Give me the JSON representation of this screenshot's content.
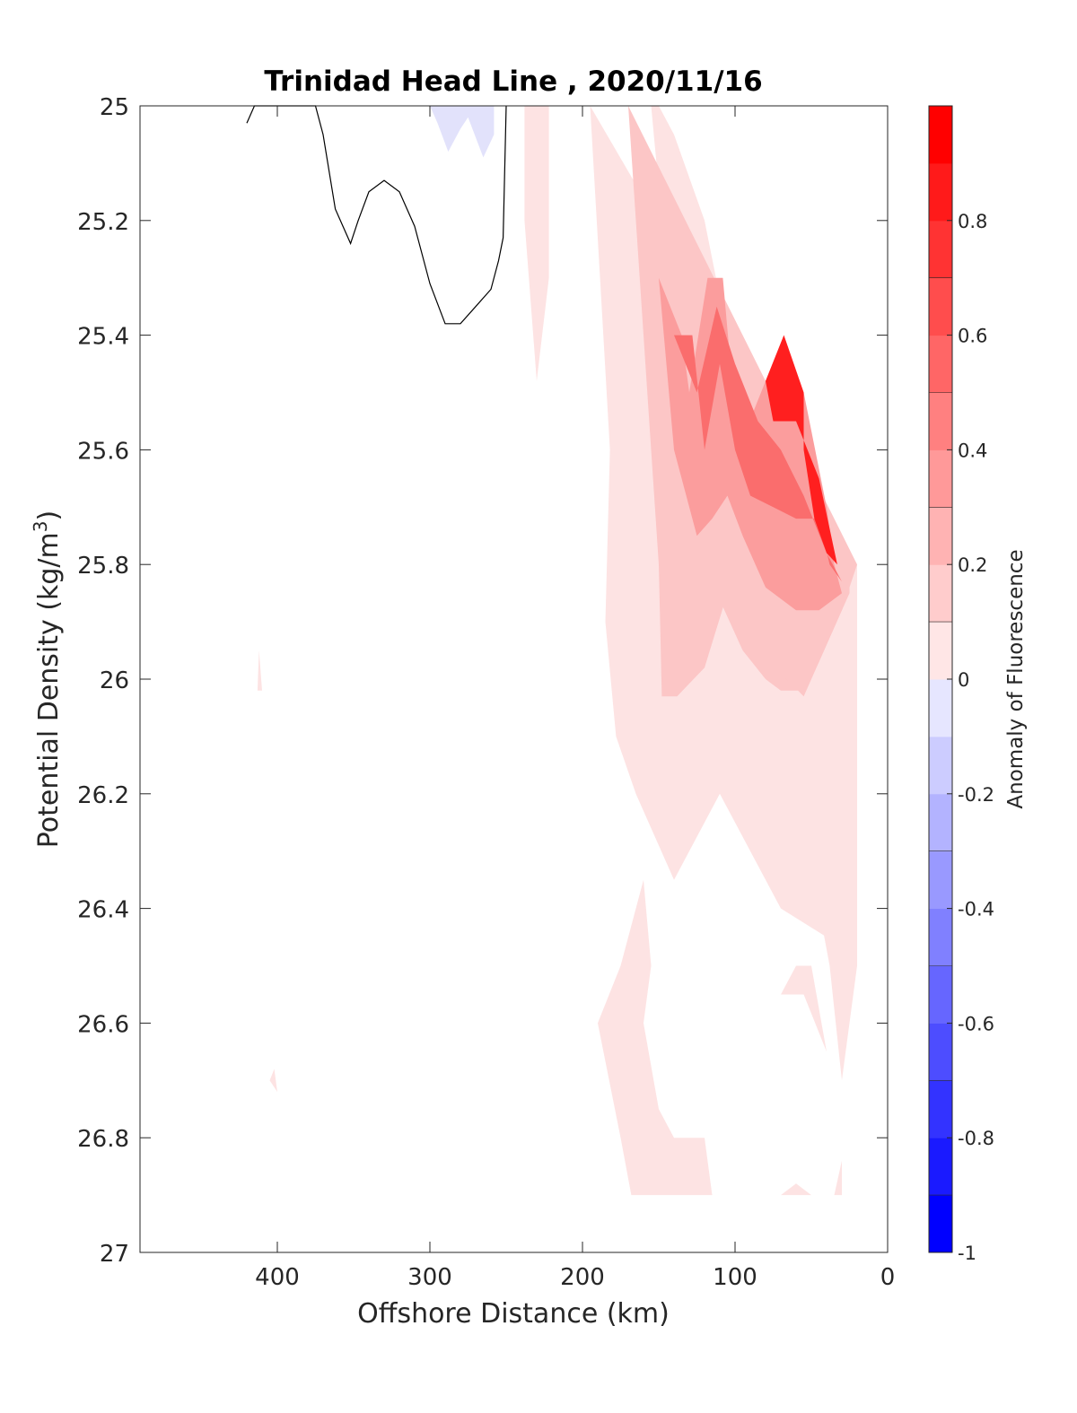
{
  "chart_data": {
    "type": "contour",
    "title": "Trinidad Head Line , 2020/11/16",
    "xlabel": "Offshore Distance (km)",
    "ylabel": "Potential Density (kg/m",
    "ylabel_sup": "3",
    "ylabel_close": ")",
    "xlim": [
      490,
      0
    ],
    "ylim": [
      25,
      27
    ],
    "x_reversed": true,
    "y_reversed": true,
    "xticks": [
      400,
      300,
      200,
      100,
      0
    ],
    "xtick_labels": [
      "400",
      "300",
      "200",
      "100",
      "0"
    ],
    "yticks": [
      25,
      25.2,
      25.4,
      25.6,
      25.8,
      26,
      26.2,
      26.4,
      26.6,
      26.8,
      27
    ],
    "ytick_labels": [
      "25",
      "25.2",
      "25.4",
      "25.6",
      "25.8",
      "26",
      "26.2",
      "26.4",
      "26.6",
      "26.8",
      "27"
    ],
    "colorbar": {
      "label": "Anomaly of Fluorescence",
      "clim": [
        -1,
        1
      ],
      "level_step": 0.2,
      "ticks": [
        0.8,
        0.6,
        0.4,
        0.2,
        0,
        -0.2,
        -0.4,
        -0.6,
        -0.8,
        -1
      ],
      "tick_labels": [
        "0.8",
        "0.6",
        "0.4",
        "0.2",
        "0",
        "-0.2",
        "-0.4",
        "-0.6",
        "-0.8",
        "-1"
      ],
      "colors": [
        "#0000ff",
        "#1a1aff",
        "#3333ff",
        "#4d4dff",
        "#6666ff",
        "#8080ff",
        "#9999ff",
        "#b3b3ff",
        "#ccccff",
        "#e6e6ff",
        "#ffffff",
        "#ffffff",
        "#ffe6e6",
        "#ffcccc",
        "#ffb3b3",
        "#ff9999",
        "#ff8080",
        "#ff6666",
        "#ff4d4d",
        "#ff3333",
        "#ff1a1a",
        "#ff0000"
      ]
    },
    "regions": [
      {
        "level": 0.1,
        "color": "#fde3e3",
        "points": [
          [
            195,
            25
          ],
          [
            155,
            25
          ],
          [
            148,
            25.2
          ],
          [
            135,
            25.4
          ],
          [
            118,
            25.6
          ],
          [
            102,
            25.8
          ],
          [
            88,
            26
          ],
          [
            72,
            26.2
          ],
          [
            52,
            26.3
          ],
          [
            38,
            26.5
          ],
          [
            30,
            26.7
          ],
          [
            20,
            26.5
          ],
          [
            20,
            25.8
          ],
          [
            80,
            25.6
          ],
          [
            105,
            25.4
          ],
          [
            120,
            25.2
          ],
          [
            140,
            25.05
          ],
          [
            150,
            25
          ],
          [
            195,
            25
          ]
        ]
      },
      {
        "level": 0.1,
        "color": "#fde3e3",
        "points": [
          [
            195,
            25
          ],
          [
            182,
            25.6
          ],
          [
            185,
            25.9
          ],
          [
            178,
            26.1
          ],
          [
            165,
            26.2
          ],
          [
            140,
            26.35
          ],
          [
            110,
            26.2
          ],
          [
            90,
            26.3
          ],
          [
            70,
            26.4
          ],
          [
            40,
            26.45
          ],
          [
            30,
            26.5
          ],
          [
            20,
            26.5
          ],
          [
            20,
            25.8
          ],
          [
            195,
            25
          ]
        ]
      },
      {
        "level": 0.1,
        "color": "#fde3e3",
        "points": [
          [
            238,
            25
          ],
          [
            222,
            25
          ],
          [
            222,
            25.3
          ],
          [
            230,
            25.48
          ],
          [
            238,
            25.2
          ],
          [
            238,
            25
          ]
        ]
      },
      {
        "level": 0.1,
        "color": "#fde3e3",
        "points": [
          [
            160,
            26.35
          ],
          [
            175,
            26.5
          ],
          [
            190,
            26.6
          ],
          [
            175,
            26.8
          ],
          [
            168,
            26.9
          ],
          [
            115,
            26.9
          ],
          [
            120,
            26.8
          ],
          [
            140,
            26.8
          ],
          [
            150,
            26.75
          ],
          [
            160,
            26.6
          ],
          [
            155,
            26.5
          ],
          [
            160,
            26.35
          ]
        ]
      },
      {
        "level": 0.1,
        "color": "#fde3e3",
        "points": [
          [
            70,
            26.55
          ],
          [
            60,
            26.5
          ],
          [
            50,
            26.5
          ],
          [
            40,
            26.65
          ],
          [
            55,
            26.55
          ],
          [
            70,
            26.55
          ]
        ]
      },
      {
        "level": 0.1,
        "color": "#fde3e3",
        "points": [
          [
            412,
            25.95
          ],
          [
            410,
            26.02
          ],
          [
            413,
            26.02
          ],
          [
            412,
            25.95
          ]
        ]
      },
      {
        "level": 0.1,
        "color": "#fde3e3",
        "points": [
          [
            405,
            26.7
          ],
          [
            400,
            26.72
          ],
          [
            402,
            26.68
          ],
          [
            405,
            26.7
          ]
        ]
      },
      {
        "level": 0.1,
        "color": "#fde3e3",
        "points": [
          [
            70,
            26.9
          ],
          [
            50,
            26.9
          ],
          [
            60,
            26.88
          ],
          [
            70,
            26.9
          ]
        ]
      },
      {
        "level": 0.1,
        "color": "#fde3e3",
        "points": [
          [
            30,
            26.9
          ],
          [
            35,
            26.9
          ],
          [
            30,
            26.84
          ],
          [
            30,
            26.9
          ]
        ]
      },
      {
        "level": 0.3,
        "color": "#fcc6c6",
        "points": [
          [
            170,
            25
          ],
          [
            160,
            25.1
          ],
          [
            150,
            25.2
          ],
          [
            145,
            25.35
          ],
          [
            140,
            25.5
          ],
          [
            130,
            25.65
          ],
          [
            120,
            25.75
          ],
          [
            112,
            25.85
          ],
          [
            95,
            25.95
          ],
          [
            80,
            26
          ],
          [
            70,
            26.02
          ],
          [
            55,
            26.02
          ],
          [
            45,
            25.97
          ],
          [
            30,
            25.88
          ],
          [
            25,
            25.85
          ],
          [
            25,
            25.8
          ],
          [
            60,
            25.7
          ],
          [
            85,
            25.6
          ],
          [
            105,
            25.5
          ],
          [
            125,
            25.4
          ],
          [
            140,
            25.35
          ],
          [
            150,
            25.3
          ],
          [
            160,
            25.2
          ],
          [
            165,
            25.1
          ],
          [
            170,
            25
          ]
        ]
      },
      {
        "level": 0.3,
        "color": "#fcc6c6",
        "points": [
          [
            170,
            25
          ],
          [
            150,
            25.8
          ],
          [
            148,
            26.03
          ],
          [
            138,
            26.03
          ],
          [
            120,
            25.98
          ],
          [
            105,
            25.85
          ],
          [
            85,
            25.95
          ],
          [
            55,
            26.03
          ],
          [
            30,
            25.88
          ],
          [
            20,
            25.8
          ],
          [
            20,
            25.8
          ],
          [
            170,
            25
          ]
        ]
      },
      {
        "level": 0.5,
        "color": "#fb9d9d",
        "points": [
          [
            150,
            25.3
          ],
          [
            135,
            25.4
          ],
          [
            130,
            25.5
          ],
          [
            118,
            25.3
          ],
          [
            108,
            25.3
          ],
          [
            98,
            25.6
          ],
          [
            80,
            25.48
          ],
          [
            68,
            25.4
          ],
          [
            55,
            25.5
          ],
          [
            40,
            25.7
          ],
          [
            35,
            25.8
          ],
          [
            30,
            25.85
          ],
          [
            45,
            25.88
          ],
          [
            60,
            25.88
          ],
          [
            80,
            25.84
          ],
          [
            95,
            25.75
          ],
          [
            105,
            25.68
          ],
          [
            115,
            25.72
          ],
          [
            125,
            25.75
          ],
          [
            140,
            25.6
          ],
          [
            150,
            25.3
          ]
        ]
      },
      {
        "level": 0.7,
        "color": "#fa6d6d",
        "points": [
          [
            140,
            25.4
          ],
          [
            128,
            25.4
          ],
          [
            120,
            25.6
          ],
          [
            110,
            25.45
          ],
          [
            100,
            25.6
          ],
          [
            90,
            25.68
          ],
          [
            75,
            25.7
          ],
          [
            60,
            25.72
          ],
          [
            45,
            25.72
          ],
          [
            38,
            25.8
          ],
          [
            30,
            25.83
          ],
          [
            40,
            25.78
          ],
          [
            55,
            25.68
          ],
          [
            70,
            25.6
          ],
          [
            85,
            25.55
          ],
          [
            100,
            25.45
          ],
          [
            112,
            25.35
          ],
          [
            125,
            25.5
          ],
          [
            140,
            25.4
          ]
        ]
      },
      {
        "level": 0.9,
        "color": "#ff1f1f",
        "points": [
          [
            68,
            25.4
          ],
          [
            55,
            25.5
          ],
          [
            55,
            25.6
          ],
          [
            48,
            25.72
          ],
          [
            40,
            25.78
          ],
          [
            33,
            25.8
          ],
          [
            45,
            25.65
          ],
          [
            60,
            25.55
          ],
          [
            75,
            25.55
          ],
          [
            80,
            25.48
          ],
          [
            68,
            25.4
          ]
        ]
      }
    ],
    "zero_contour": [
      [
        420,
        25.03
      ],
      [
        415,
        25
      ],
      [
        375,
        25
      ],
      [
        370,
        25.05
      ],
      [
        362,
        25.18
      ],
      [
        352,
        25.24
      ],
      [
        347,
        25.2
      ],
      [
        340,
        25.15
      ],
      [
        330,
        25.13
      ],
      [
        320,
        25.15
      ],
      [
        310,
        25.21
      ],
      [
        300,
        25.31
      ],
      [
        290,
        25.38
      ],
      [
        280,
        25.38
      ],
      [
        270,
        25.35
      ],
      [
        260,
        25.32
      ],
      [
        255,
        25.27
      ],
      [
        252,
        25.23
      ],
      [
        250,
        25.0
      ]
    ],
    "negative_patch": [
      [
        300,
        25
      ],
      [
        295,
        25.03
      ],
      [
        288,
        25.08
      ],
      [
        280,
        25.04
      ],
      [
        275,
        25.02
      ],
      [
        265,
        25.09
      ],
      [
        258,
        25.05
      ],
      [
        258,
        25
      ],
      [
        300,
        25
      ]
    ]
  }
}
